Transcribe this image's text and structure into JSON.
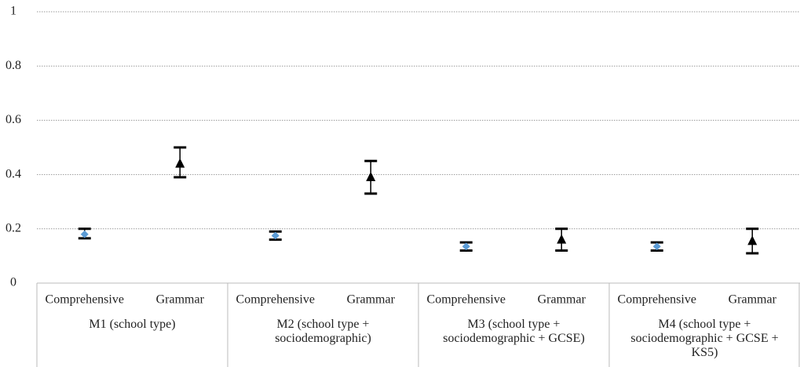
{
  "chart_data": {
    "type": "errorbar",
    "groups": [
      "M1 (school type)",
      "M2  (school type + sociodemographic)",
      "M3 (school type + sociodemographic + GCSE)",
      "M4 (school type + sociodemographic + GCSE + KS5)"
    ],
    "series": [
      {
        "name": "Comprehensive",
        "color": "#5b9bd5",
        "marker": "diamond",
        "values": [
          0.18,
          0.175,
          0.135,
          0.135
        ],
        "lower": [
          0.165,
          0.16,
          0.12,
          0.12
        ],
        "upper": [
          0.2,
          0.19,
          0.15,
          0.15
        ]
      },
      {
        "name": "Grammar",
        "color": "#000000",
        "marker": "triangle",
        "values": [
          0.44,
          0.39,
          0.16,
          0.155
        ],
        "lower": [
          0.39,
          0.33,
          0.12,
          0.11
        ],
        "upper": [
          0.5,
          0.45,
          0.2,
          0.2
        ]
      }
    ],
    "ylim": [
      0,
      1
    ],
    "yticks": [
      0,
      0.2,
      0.4,
      0.6,
      0.8,
      1
    ],
    "grid": true
  }
}
